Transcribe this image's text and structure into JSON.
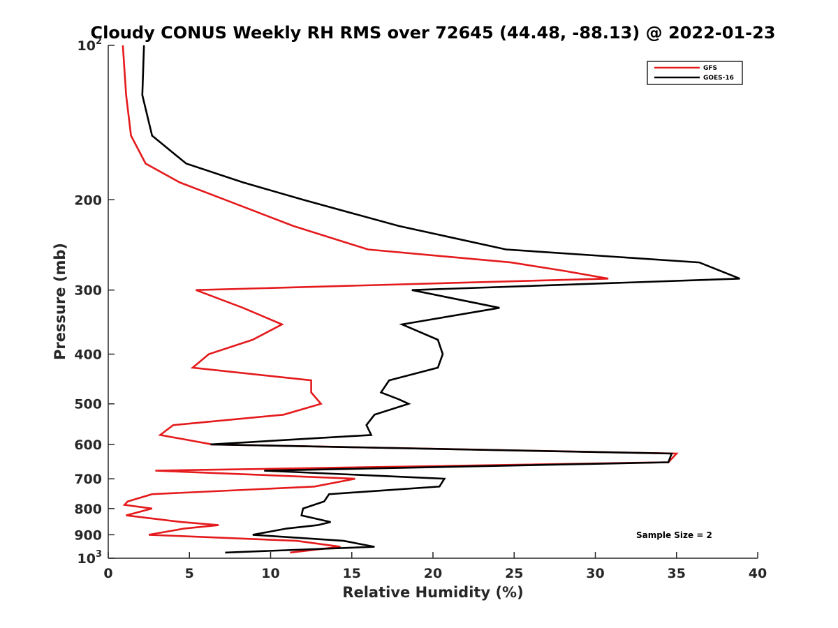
{
  "chart_data": {
    "type": "line",
    "title": "Cloudy CONUS Weekly RH RMS over 72645 (44.48, -88.13) @ 2022-01-23",
    "xlabel": "Relative Humidity (%)",
    "ylabel": "Pressure (mb)",
    "xlim": [
      0,
      40
    ],
    "ylim": [
      100,
      1000
    ],
    "y_scale": "log",
    "y_reversed": true,
    "grid": false,
    "legend_position": "top-right",
    "x_ticks": [
      {
        "value": 0,
        "label": "0"
      },
      {
        "value": 5,
        "label": "5"
      },
      {
        "value": 10,
        "label": "10"
      },
      {
        "value": 15,
        "label": "15"
      },
      {
        "value": 20,
        "label": "20"
      },
      {
        "value": 25,
        "label": "25"
      },
      {
        "value": 30,
        "label": "30"
      },
      {
        "value": 35,
        "label": "35"
      },
      {
        "value": 40,
        "label": "40"
      }
    ],
    "y_ticks": [
      {
        "value": 100,
        "base": "10",
        "exp": "2"
      },
      {
        "value": 200,
        "label": "200"
      },
      {
        "value": 300,
        "label": "300"
      },
      {
        "value": 400,
        "label": "400"
      },
      {
        "value": 500,
        "label": "500"
      },
      {
        "value": 600,
        "label": "600"
      },
      {
        "value": 700,
        "label": "700"
      },
      {
        "value": 800,
        "label": "800"
      },
      {
        "value": 900,
        "label": "900"
      },
      {
        "value": 1000,
        "base": "10",
        "exp": "3"
      }
    ],
    "series": [
      {
        "name": "GFS",
        "color": "#e41a1c",
        "points": [
          [
            0.9,
            100
          ],
          [
            1.1,
            125
          ],
          [
            1.4,
            150
          ],
          [
            2.3,
            170
          ],
          [
            4.4,
            185
          ],
          [
            7.2,
            200
          ],
          [
            11.4,
            225
          ],
          [
            16.0,
            250
          ],
          [
            24.8,
            265
          ],
          [
            28.0,
            275
          ],
          [
            30.8,
            285
          ],
          [
            5.4,
            300
          ],
          [
            8.3,
            325
          ],
          [
            10.7,
            350
          ],
          [
            8.9,
            375
          ],
          [
            6.2,
            400
          ],
          [
            5.2,
            425
          ],
          [
            12.5,
            450
          ],
          [
            12.5,
            475
          ],
          [
            13.1,
            500
          ],
          [
            10.8,
            525
          ],
          [
            4.0,
            550
          ],
          [
            3.2,
            575
          ],
          [
            6.4,
            600
          ],
          [
            35.0,
            625
          ],
          [
            34.5,
            650
          ],
          [
            2.9,
            675
          ],
          [
            15.2,
            700
          ],
          [
            12.7,
            725
          ],
          [
            2.7,
            750
          ],
          [
            1.2,
            775
          ],
          [
            1.0,
            787
          ],
          [
            2.7,
            800
          ],
          [
            1.1,
            825
          ],
          [
            4.5,
            850
          ],
          [
            6.8,
            862
          ],
          [
            4.7,
            875
          ],
          [
            2.5,
            900
          ],
          [
            11.6,
            925
          ],
          [
            14.3,
            950
          ],
          [
            11.2,
            975
          ]
        ]
      },
      {
        "name": "GOES-16",
        "color": "#000000",
        "points": [
          [
            2.2,
            100
          ],
          [
            2.1,
            125
          ],
          [
            2.7,
            150
          ],
          [
            4.8,
            170
          ],
          [
            8.3,
            185
          ],
          [
            12.0,
            200
          ],
          [
            17.9,
            225
          ],
          [
            24.5,
            250
          ],
          [
            36.4,
            265
          ],
          [
            38.9,
            285
          ],
          [
            18.7,
            300
          ],
          [
            24.1,
            325
          ],
          [
            18.1,
            350
          ],
          [
            20.3,
            375
          ],
          [
            20.6,
            400
          ],
          [
            20.3,
            425
          ],
          [
            17.3,
            450
          ],
          [
            16.8,
            475
          ],
          [
            17.9,
            490
          ],
          [
            18.5,
            500
          ],
          [
            16.4,
            525
          ],
          [
            15.9,
            550
          ],
          [
            16.2,
            575
          ],
          [
            6.3,
            600
          ],
          [
            34.7,
            625
          ],
          [
            34.5,
            650
          ],
          [
            9.6,
            675
          ],
          [
            20.7,
            700
          ],
          [
            20.4,
            725
          ],
          [
            13.6,
            750
          ],
          [
            13.3,
            775
          ],
          [
            12.0,
            800
          ],
          [
            11.9,
            825
          ],
          [
            13.7,
            850
          ],
          [
            12.9,
            862
          ],
          [
            11.0,
            875
          ],
          [
            8.9,
            900
          ],
          [
            14.5,
            925
          ],
          [
            16.4,
            950
          ],
          [
            7.2,
            975
          ]
        ]
      }
    ],
    "annotations": [
      {
        "text": "Sample Size = 2"
      }
    ]
  }
}
